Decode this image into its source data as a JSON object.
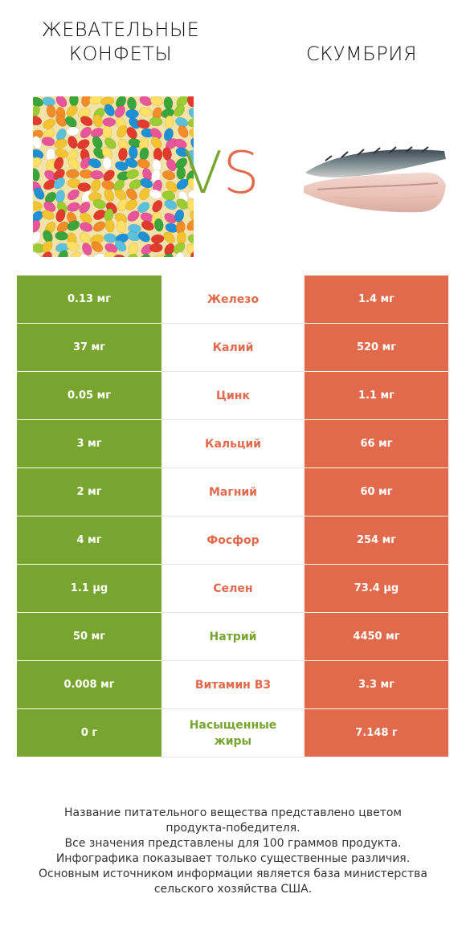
{
  "header": {
    "left_title_line1": "ЖЕВАТЕЛЬНЫЕ",
    "left_title_line2": "КОНФЕТЫ",
    "right_title": "СКУМБРИЯ",
    "vs_v": "V",
    "vs_s": "S"
  },
  "colors": {
    "left_winner": "#77a52f",
    "right_winner": "#e06a4b"
  },
  "images": {
    "left": "jelly-beans-photo",
    "right": "mackerel-fillet-photo"
  },
  "rows": [
    {
      "left": "0.13 мг",
      "name": "Железо",
      "right": "1.4 мг",
      "winner": "right"
    },
    {
      "left": "37 мг",
      "name": "Калий",
      "right": "520 мг",
      "winner": "right"
    },
    {
      "left": "0.05 мг",
      "name": "Цинк",
      "right": "1.1 мг",
      "winner": "right"
    },
    {
      "left": "3 мг",
      "name": "Кальций",
      "right": "66 мг",
      "winner": "right"
    },
    {
      "left": "2 мг",
      "name": "Магний",
      "right": "60 мг",
      "winner": "right"
    },
    {
      "left": "4 мг",
      "name": "Фосфор",
      "right": "254 мг",
      "winner": "right"
    },
    {
      "left": "1.1 µg",
      "name": "Селен",
      "right": "73.4 µg",
      "winner": "right"
    },
    {
      "left": "50 мг",
      "name": "Натрий",
      "right": "4450 мг",
      "winner": "left"
    },
    {
      "left": "0.008 мг",
      "name": "Витамин B3",
      "right": "3.3 мг",
      "winner": "right"
    },
    {
      "left": "0 г",
      "name": "Насыщенные жиры",
      "right": "7.148 г",
      "winner": "left"
    }
  ],
  "footer": {
    "line1": "Название питательного вещества представлено цветом",
    "line2": "продукта-победителя.",
    "line3": "Все значения представлены для 100 граммов продукта.",
    "line4": "Инфографика показывает только существенные различия.",
    "line5": "Основным источником информации является база министерства",
    "line6": "сельского хозяйства США."
  }
}
